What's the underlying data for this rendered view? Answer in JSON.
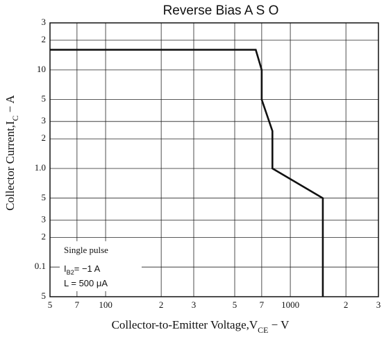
{
  "chart_data": {
    "type": "line",
    "title": "Reverse   Bias   A S O",
    "xlabel_parts": [
      "Collector-to-Emitter Voltage,V",
      "CE",
      " − V"
    ],
    "ylabel_parts": [
      "Collector Current,I",
      "C",
      " − A"
    ],
    "annotations": [
      {
        "parts": [
          "Single pulse"
        ]
      },
      {
        "parts": [
          "I",
          "B2",
          "= −1 A"
        ]
      },
      {
        "parts": [
          "L = 500 μA"
        ]
      }
    ],
    "log_x": true,
    "log_y": true,
    "grid": true,
    "xlim": [
      50,
      3000
    ],
    "ylim": [
      0.05,
      30
    ],
    "xticks": [
      {
        "value": 50,
        "label": "5"
      },
      {
        "value": 70,
        "label": "7"
      },
      100,
      {
        "value": 200,
        "label": "2"
      },
      {
        "value": 300,
        "label": "3"
      },
      {
        "value": 500,
        "label": "5"
      },
      {
        "value": 700,
        "label": "7"
      },
      1000,
      {
        "value": 2000,
        "label": "2"
      },
      {
        "value": 3000,
        "label": "3"
      }
    ],
    "yticks": [
      {
        "value": 0.05,
        "label": "5"
      },
      0.1,
      {
        "value": 0.2,
        "label": "2"
      },
      {
        "value": 0.3,
        "label": "3"
      },
      {
        "value": 0.5,
        "label": "5"
      },
      {
        "value": 1,
        "label": "1.0"
      },
      2,
      3,
      5,
      10,
      {
        "value": 20,
        "label": "2"
      },
      {
        "value": 30,
        "label": "3"
      }
    ],
    "series": [
      {
        "color": "#111111",
        "x": [
          50,
          650,
          700,
          700,
          800,
          800,
          1500,
          1500
        ],
        "values": [
          16,
          16,
          10,
          5,
          2.4,
          1.0,
          0.5,
          0.05
        ]
      }
    ]
  }
}
